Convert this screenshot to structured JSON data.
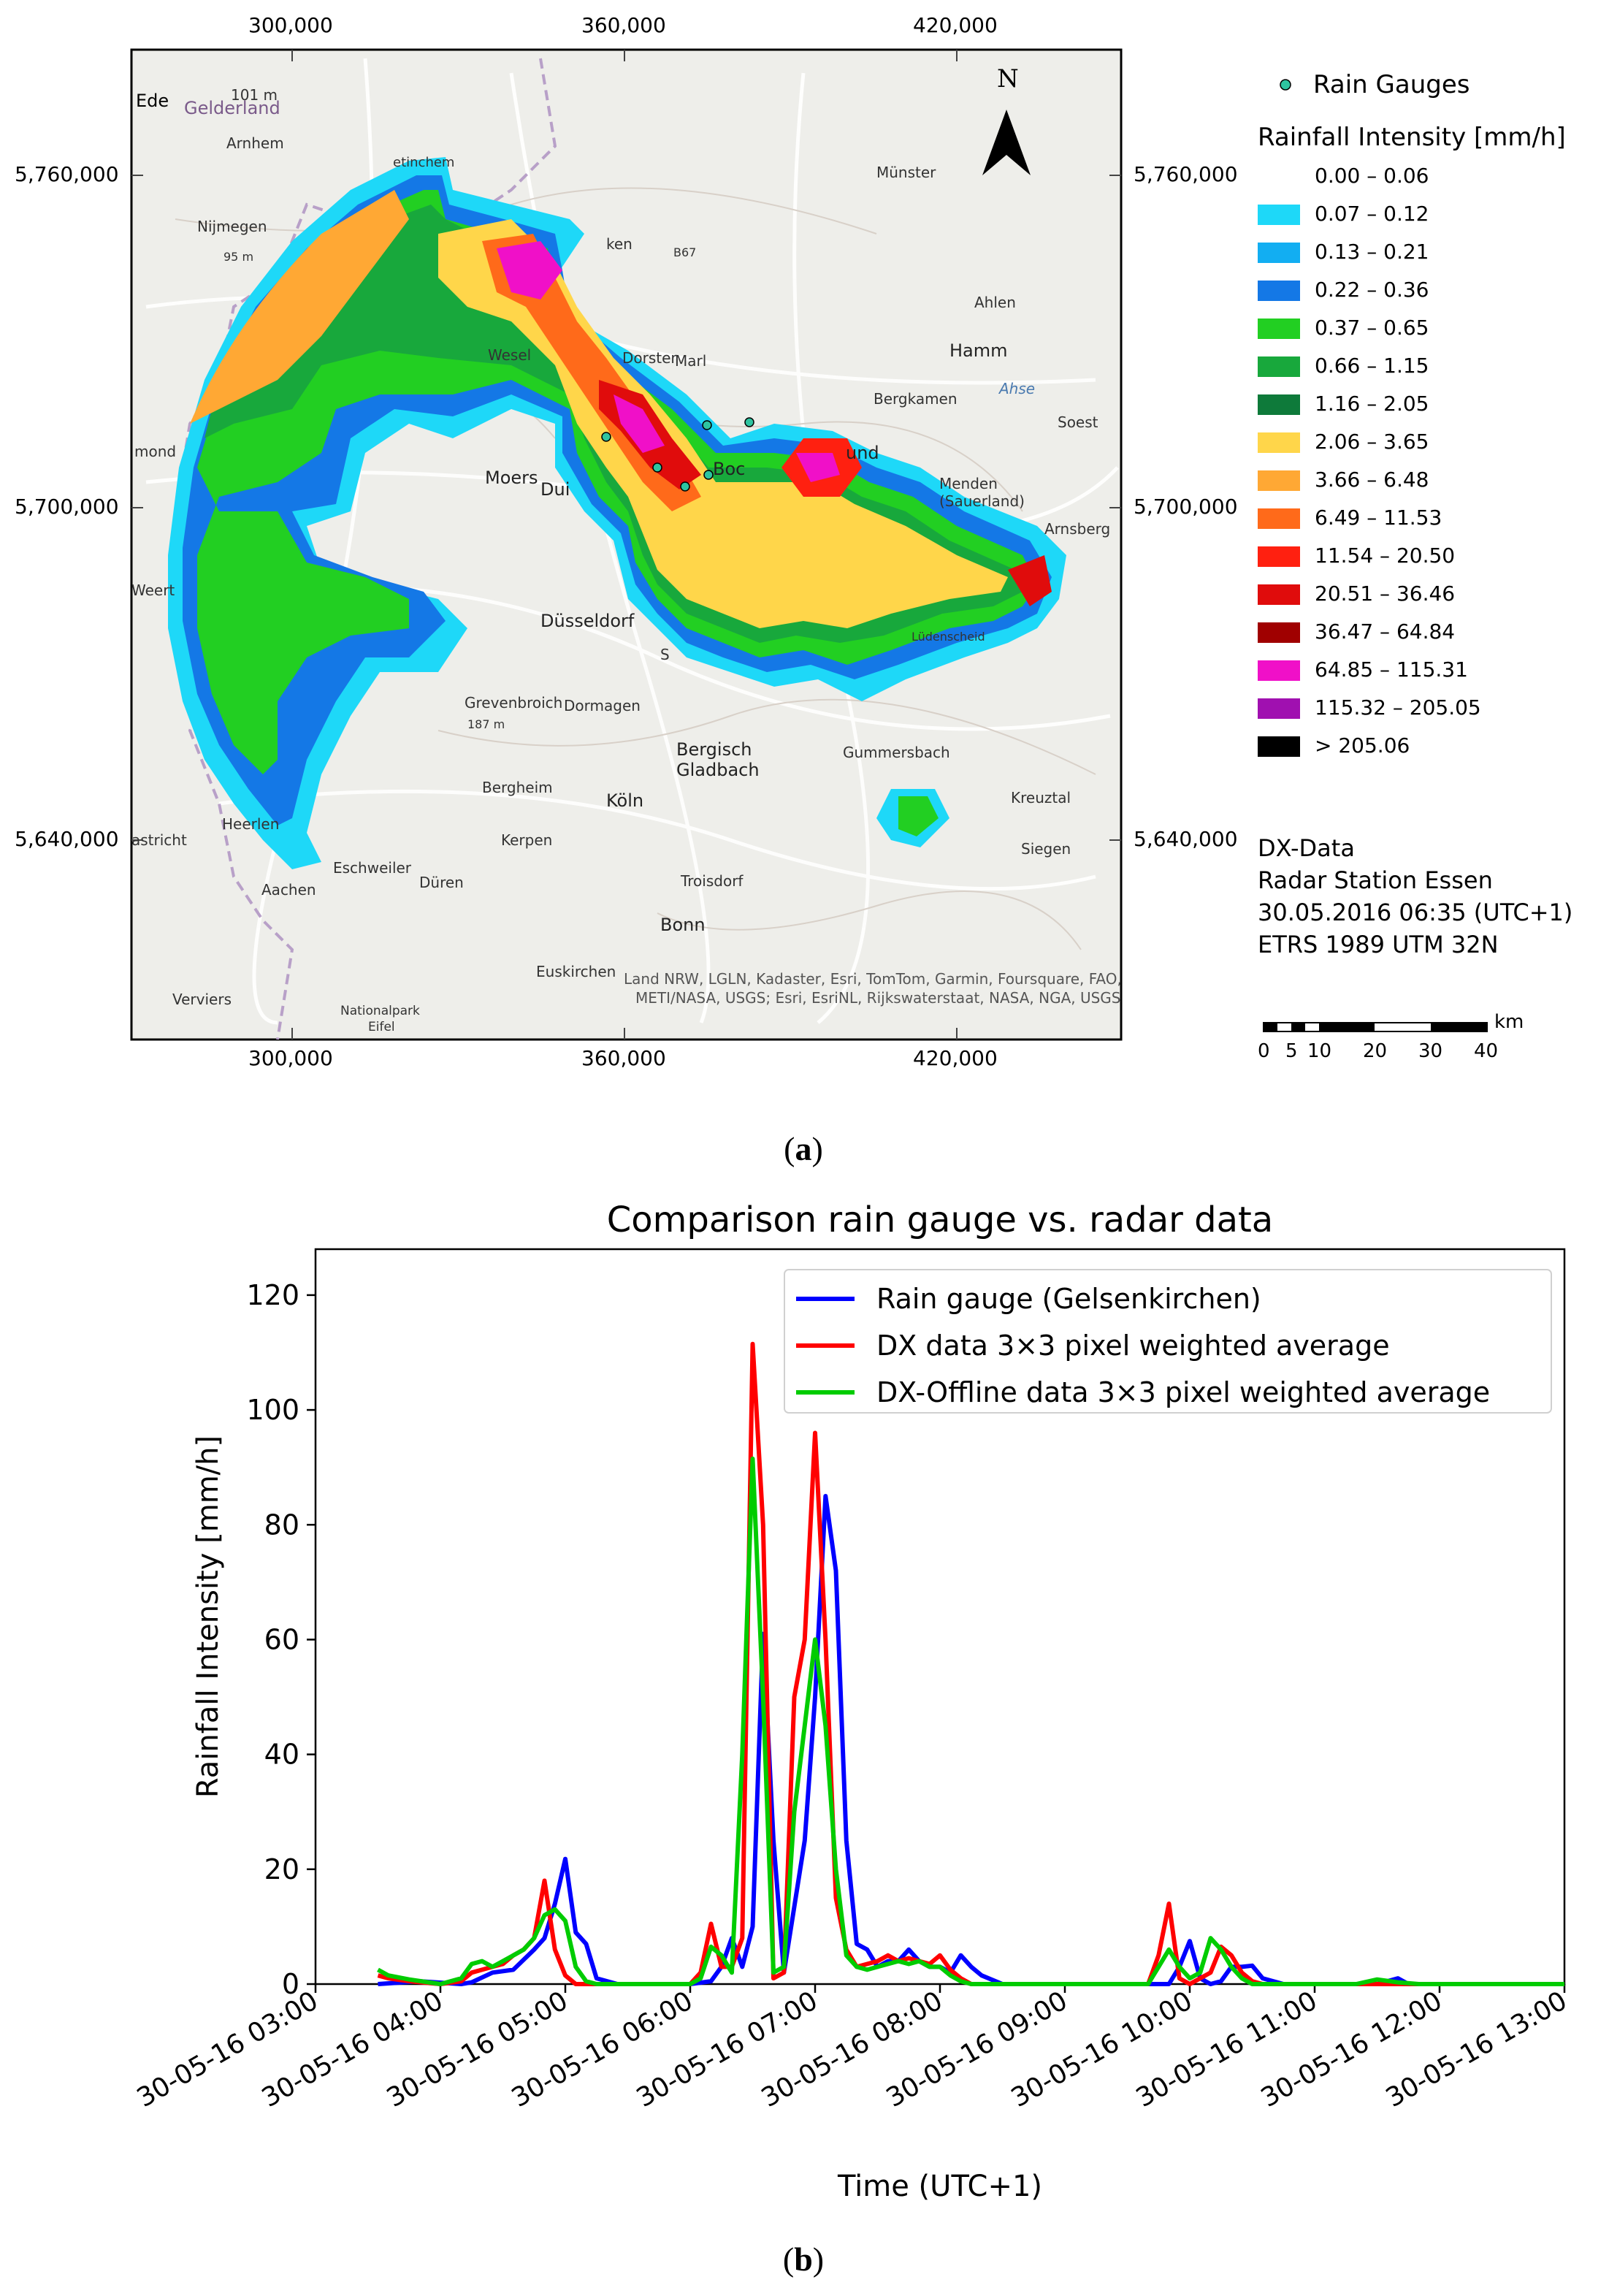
{
  "panel_a": {
    "label": "a",
    "x_ticks": [
      "300,000",
      "360,000",
      "420,000"
    ],
    "y_ticks": [
      "5,760,000",
      "5,700,000",
      "5,640,000"
    ],
    "north_label": "N",
    "legend": {
      "gauge_label": "Rain Gauges",
      "gauge_color": "#2ec4a0",
      "title": "Rainfall Intensity [mm/h]",
      "classes": [
        {
          "label": "0.00 – 0.06",
          "color": "#ffffff"
        },
        {
          "label": "0.07 – 0.12",
          "color": "#1ed8f8"
        },
        {
          "label": "0.13 – 0.21",
          "color": "#12aef2"
        },
        {
          "label": "0.22 – 0.36",
          "color": "#1478e6"
        },
        {
          "label": "0.37 – 0.65",
          "color": "#22cf22"
        },
        {
          "label": "0.66 – 1.15",
          "color": "#18a83c"
        },
        {
          "label": "1.16 – 2.05",
          "color": "#0e7a3a"
        },
        {
          "label": "2.06 – 3.65",
          "color": "#ffd64a"
        },
        {
          "label": "3.66 – 6.48",
          "color": "#ffa834"
        },
        {
          "label": "6.49 – 11.53",
          "color": "#ff6a1a"
        },
        {
          "label": "11.54 – 20.50",
          "color": "#ff2010"
        },
        {
          "label": "20.51 – 36.46",
          "color": "#e00c0c"
        },
        {
          "label": "36.47 – 64.84",
          "color": "#a00000"
        },
        {
          "label": "64.85 – 115.31",
          "color": "#f010c8"
        },
        {
          "label": "115.32 – 205.05",
          "color": "#a010b0"
        },
        {
          "label": "> 205.06",
          "color": "#000000"
        }
      ]
    },
    "info": [
      "DX-Data",
      "Radar Station Essen",
      "30.05.2016 06:35 (UTC+1)",
      "ETRS 1989 UTM 32N"
    ],
    "scale_bar": {
      "unit": "km",
      "labels": [
        "0",
        "5",
        "10",
        "20",
        "30",
        "40"
      ]
    },
    "attribution": [
      "Land NRW, LGLN, Kadaster, Esri, TomTom, Garmin, Foursquare, FAO,",
      "METI/NASA, USGS; Esri, EsriNL, Rijkswaterstaat, NASA, NGA, USGS"
    ],
    "places": [
      {
        "name": "Ede",
        "big": true
      },
      {
        "name": "Gelderland",
        "big": true
      },
      {
        "name": "101 m",
        "big": false
      },
      {
        "name": "Arnhem",
        "big": false
      },
      {
        "name": "Nijmegen",
        "big": false
      },
      {
        "name": "95 m",
        "big": false
      },
      {
        "name": "etinchem",
        "big": false
      },
      {
        "name": "ken",
        "big": false
      },
      {
        "name": "B67",
        "big": false
      },
      {
        "name": "Münster",
        "big": false
      },
      {
        "name": "Ahlen",
        "big": false
      },
      {
        "name": "Hamm",
        "big": false
      },
      {
        "name": "Ahse",
        "big": false
      },
      {
        "name": "Bergkamen",
        "big": false
      },
      {
        "name": "Soest",
        "big": false
      },
      {
        "name": "Wesel",
        "big": false
      },
      {
        "name": "Dorster",
        "big": false
      },
      {
        "name": "Marl",
        "big": false
      },
      {
        "name": "mond",
        "big": false
      },
      {
        "name": "Moers",
        "big": true
      },
      {
        "name": "Dui",
        "big": false
      },
      {
        "name": "Boc",
        "big": false
      },
      {
        "name": "und",
        "big": false
      },
      {
        "name": "Menden (Sauerland)",
        "big": false
      },
      {
        "name": "Arnsberg",
        "big": false
      },
      {
        "name": "Weert",
        "big": false
      },
      {
        "name": "Düsseldorf",
        "big": true
      },
      {
        "name": "S",
        "big": false
      },
      {
        "name": "Lüdenscheid",
        "big": false
      },
      {
        "name": "Grevenbroich",
        "big": false
      },
      {
        "name": "187 m",
        "big": false
      },
      {
        "name": "Dormagen",
        "big": false
      },
      {
        "name": "Bergisch",
        "big": true
      },
      {
        "name": "Gladbach",
        "big": true
      },
      {
        "name": "Gummersbach",
        "big": false
      },
      {
        "name": "Bergheim",
        "big": false
      },
      {
        "name": "Köln",
        "big": true
      },
      {
        "name": "Kreuztal",
        "big": false
      },
      {
        "name": "Heerlen",
        "big": false
      },
      {
        "name": "Kerpen",
        "big": false
      },
      {
        "name": "Siegen",
        "big": false
      },
      {
        "name": "astricht",
        "big": false
      },
      {
        "name": "Eschweiler",
        "big": false
      },
      {
        "name": "Aachen",
        "big": false
      },
      {
        "name": "Düren",
        "big": false
      },
      {
        "name": "Troisdorf",
        "big": false
      },
      {
        "name": "Bonn",
        "big": true
      },
      {
        "name": "Euskirchen",
        "big": false
      },
      {
        "name": "Verviers",
        "big": false
      },
      {
        "name": "Nationalpark",
        "big": false
      },
      {
        "name": "Eifel",
        "big": false
      }
    ]
  },
  "panel_b": {
    "label": "b"
  },
  "chart_data": {
    "type": "line",
    "title": "Comparison rain gauge vs. radar data",
    "xlabel": "Time (UTC+1)",
    "ylabel": "Rainfall Intensity [mm/h]",
    "ylim": [
      0,
      128
    ],
    "xlim": [
      "30-05-16 03:00",
      "30-05-16 13:00"
    ],
    "x_tick_labels": [
      "30-05-16 03:00",
      "30-05-16 04:00",
      "30-05-16 05:00",
      "30-05-16 06:00",
      "30-05-16 07:00",
      "30-05-16 08:00",
      "30-05-16 09:00",
      "30-05-16 10:00",
      "30-05-16 11:00",
      "30-05-16 12:00",
      "30-05-16 13:00"
    ],
    "y_tick_labels": [
      "0",
      "20",
      "40",
      "60",
      "80",
      "100",
      "120"
    ],
    "legend_position": "top-right",
    "grid": false,
    "series": [
      {
        "name": "Rain gauge (Gelsenkirchen)",
        "color": "#0000ff",
        "points": [
          [
            "03:30",
            0
          ],
          [
            "03:50",
            0.5
          ],
          [
            "04:10",
            0
          ],
          [
            "04:15",
            0.3
          ],
          [
            "04:25",
            2
          ],
          [
            "04:35",
            2.5
          ],
          [
            "04:45",
            6
          ],
          [
            "04:50",
            8
          ],
          [
            "04:55",
            14
          ],
          [
            "05:00",
            21.8
          ],
          [
            "05:05",
            9
          ],
          [
            "05:10",
            7
          ],
          [
            "05:15",
            1
          ],
          [
            "05:25",
            0
          ],
          [
            "06:00",
            0
          ],
          [
            "06:10",
            0.5
          ],
          [
            "06:15",
            3
          ],
          [
            "06:20",
            8
          ],
          [
            "06:25",
            3
          ],
          [
            "06:30",
            10
          ],
          [
            "06:35",
            61
          ],
          [
            "06:40",
            25
          ],
          [
            "06:45",
            2
          ],
          [
            "06:55",
            25
          ],
          [
            "07:00",
            50
          ],
          [
            "07:05",
            85
          ],
          [
            "07:10",
            72
          ],
          [
            "07:15",
            25
          ],
          [
            "07:20",
            7
          ],
          [
            "07:25",
            6
          ],
          [
            "07:30",
            3
          ],
          [
            "07:35",
            4
          ],
          [
            "07:40",
            4
          ],
          [
            "07:45",
            6
          ],
          [
            "07:50",
            4
          ],
          [
            "07:55",
            3
          ],
          [
            "08:00",
            3
          ],
          [
            "08:05",
            2
          ],
          [
            "08:10",
            5
          ],
          [
            "08:15",
            3
          ],
          [
            "08:20",
            1.5
          ],
          [
            "08:30",
            0
          ],
          [
            "09:50",
            0
          ],
          [
            "09:55",
            3
          ],
          [
            "10:00",
            7.5
          ],
          [
            "10:05",
            1
          ],
          [
            "10:10",
            0
          ],
          [
            "10:15",
            0.5
          ],
          [
            "10:20",
            3
          ],
          [
            "10:25",
            3
          ],
          [
            "10:30",
            3.2
          ],
          [
            "10:35",
            1
          ],
          [
            "10:45",
            0
          ],
          [
            "11:30",
            0
          ],
          [
            "11:40",
            1
          ],
          [
            "11:45",
            0
          ],
          [
            "13:00",
            0
          ]
        ]
      },
      {
        "name": "DX data 3×3 pixel weighted average",
        "color": "#ff0000",
        "points": [
          [
            "03:30",
            1.5
          ],
          [
            "03:35",
            1
          ],
          [
            "03:45",
            0.5
          ],
          [
            "04:00",
            0
          ],
          [
            "04:10",
            0.5
          ],
          [
            "04:15",
            2
          ],
          [
            "04:20",
            2.5
          ],
          [
            "04:25",
            3
          ],
          [
            "04:30",
            3.5
          ],
          [
            "04:35",
            5
          ],
          [
            "04:40",
            6
          ],
          [
            "04:45",
            8
          ],
          [
            "04:50",
            18
          ],
          [
            "04:55",
            6
          ],
          [
            "05:00",
            1.5
          ],
          [
            "05:05",
            0
          ],
          [
            "06:00",
            0
          ],
          [
            "06:05",
            2
          ],
          [
            "06:10",
            10.5
          ],
          [
            "06:15",
            3
          ],
          [
            "06:20",
            3
          ],
          [
            "06:25",
            8
          ],
          [
            "06:30",
            111.5
          ],
          [
            "06:35",
            80
          ],
          [
            "06:40",
            1
          ],
          [
            "06:45",
            2
          ],
          [
            "06:50",
            50
          ],
          [
            "06:55",
            60
          ],
          [
            "07:00",
            96
          ],
          [
            "07:05",
            60
          ],
          [
            "07:10",
            15
          ],
          [
            "07:15",
            6
          ],
          [
            "07:20",
            3
          ],
          [
            "07:25",
            3.5
          ],
          [
            "07:30",
            4
          ],
          [
            "07:35",
            5
          ],
          [
            "07:40",
            4
          ],
          [
            "07:45",
            4.5
          ],
          [
            "07:50",
            4
          ],
          [
            "07:55",
            3.5
          ],
          [
            "08:00",
            5
          ],
          [
            "08:05",
            2.5
          ],
          [
            "08:10",
            1
          ],
          [
            "08:15",
            0
          ],
          [
            "09:40",
            0
          ],
          [
            "09:45",
            5
          ],
          [
            "09:50",
            14
          ],
          [
            "09:55",
            1
          ],
          [
            "10:00",
            0
          ],
          [
            "10:10",
            2
          ],
          [
            "10:15",
            6.5
          ],
          [
            "10:20",
            5
          ],
          [
            "10:25",
            2
          ],
          [
            "10:30",
            0.5
          ],
          [
            "10:35",
            0
          ],
          [
            "13:00",
            0
          ]
        ]
      },
      {
        "name": "DX-Offline data 3×3 pixel weighted average",
        "color": "#00cc00",
        "points": [
          [
            "03:30",
            2.5
          ],
          [
            "03:35",
            1.5
          ],
          [
            "03:45",
            0.8
          ],
          [
            "04:00",
            0
          ],
          [
            "04:10",
            1
          ],
          [
            "04:15",
            3.5
          ],
          [
            "04:20",
            4
          ],
          [
            "04:25",
            3
          ],
          [
            "04:30",
            4
          ],
          [
            "04:35",
            5
          ],
          [
            "04:40",
            6
          ],
          [
            "04:45",
            8
          ],
          [
            "04:50",
            12
          ],
          [
            "04:55",
            13
          ],
          [
            "05:00",
            11
          ],
          [
            "05:05",
            3
          ],
          [
            "05:10",
            0.5
          ],
          [
            "05:15",
            0
          ],
          [
            "06:00",
            0
          ],
          [
            "06:05",
            1
          ],
          [
            "06:10",
            6.5
          ],
          [
            "06:15",
            5
          ],
          [
            "06:20",
            2
          ],
          [
            "06:25",
            40
          ],
          [
            "06:30",
            91.5
          ],
          [
            "06:35",
            50
          ],
          [
            "06:40",
            2
          ],
          [
            "06:45",
            3
          ],
          [
            "06:50",
            30
          ],
          [
            "06:55",
            45
          ],
          [
            "07:00",
            60
          ],
          [
            "07:05",
            45
          ],
          [
            "07:10",
            20
          ],
          [
            "07:15",
            5
          ],
          [
            "07:20",
            3
          ],
          [
            "07:25",
            2.5
          ],
          [
            "07:30",
            3
          ],
          [
            "07:35",
            3.5
          ],
          [
            "07:40",
            4
          ],
          [
            "07:45",
            3.5
          ],
          [
            "07:50",
            4
          ],
          [
            "07:55",
            3
          ],
          [
            "08:00",
            3
          ],
          [
            "08:05",
            1.5
          ],
          [
            "08:10",
            0.5
          ],
          [
            "08:15",
            0
          ],
          [
            "09:40",
            0
          ],
          [
            "09:45",
            3
          ],
          [
            "09:50",
            6
          ],
          [
            "09:55",
            3
          ],
          [
            "10:00",
            1
          ],
          [
            "10:05",
            2
          ],
          [
            "10:10",
            8
          ],
          [
            "10:15",
            6
          ],
          [
            "10:20",
            3
          ],
          [
            "10:25",
            1
          ],
          [
            "10:30",
            0
          ],
          [
            "11:20",
            0
          ],
          [
            "11:30",
            0.8
          ],
          [
            "11:40",
            0.3
          ],
          [
            "11:50",
            0
          ],
          [
            "13:00",
            0
          ]
        ]
      }
    ]
  }
}
